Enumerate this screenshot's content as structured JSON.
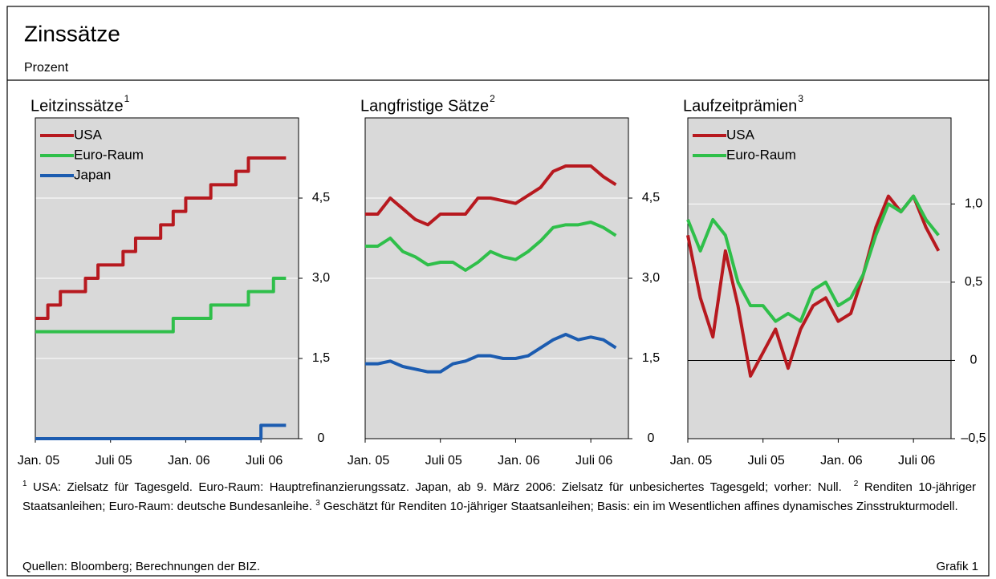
{
  "header": {
    "title": "Zinssätze",
    "subtitle": "Prozent"
  },
  "chart_data": [
    {
      "type": "line",
      "step": true,
      "title": "Leitzinssätze",
      "title_footnote": "1",
      "x": [
        "2005-01",
        "2005-02",
        "2005-03",
        "2005-04",
        "2005-05",
        "2005-06",
        "2005-07",
        "2005-08",
        "2005-09",
        "2005-10",
        "2005-11",
        "2005-12",
        "2006-01",
        "2006-02",
        "2006-03",
        "2006-04",
        "2006-05",
        "2006-06",
        "2006-07",
        "2006-08",
        "2006-09"
      ],
      "xlim": [
        "2005-01",
        "2006-10"
      ],
      "xticks": [
        {
          "value": "2005-01",
          "label": "Jan. 05"
        },
        {
          "value": "2005-07",
          "label": "Juli 05"
        },
        {
          "value": "2006-01",
          "label": "Jan. 06"
        },
        {
          "value": "2006-07",
          "label": "Juli 06"
        }
      ],
      "ylim": [
        0,
        6
      ],
      "yticks": [
        0,
        {
          "value": 1.5,
          "label": "1,5"
        },
        {
          "value": 3,
          "label": "3,0"
        },
        {
          "value": 4.5,
          "label": "4,5"
        }
      ],
      "grid": true,
      "legend": "top-left",
      "series": [
        {
          "name": "USA",
          "color": "#b7191f",
          "values": [
            2.25,
            2.5,
            2.75,
            2.75,
            3.0,
            3.25,
            3.25,
            3.5,
            3.75,
            3.75,
            4.0,
            4.25,
            4.5,
            4.5,
            4.75,
            4.75,
            5.0,
            5.25,
            5.25,
            5.25,
            5.25
          ]
        },
        {
          "name": "Euro-Raum",
          "color": "#2fbf4a",
          "values": [
            2.0,
            2.0,
            2.0,
            2.0,
            2.0,
            2.0,
            2.0,
            2.0,
            2.0,
            2.0,
            2.0,
            2.25,
            2.25,
            2.25,
            2.5,
            2.5,
            2.5,
            2.75,
            2.75,
            3.0,
            3.0
          ]
        },
        {
          "name": "Japan",
          "color": "#1c5cb0",
          "values": [
            0,
            0,
            0,
            0,
            0,
            0,
            0,
            0,
            0,
            0,
            0,
            0,
            0,
            0,
            0,
            0,
            0,
            0,
            0.25,
            0.25,
            0.25
          ]
        }
      ]
    },
    {
      "type": "line",
      "title": "Langfristige Sätze",
      "title_footnote": "2",
      "x": [
        "2005-01",
        "2005-02",
        "2005-03",
        "2005-04",
        "2005-05",
        "2005-06",
        "2005-07",
        "2005-08",
        "2005-09",
        "2005-10",
        "2005-11",
        "2005-12",
        "2006-01",
        "2006-02",
        "2006-03",
        "2006-04",
        "2006-05",
        "2006-06",
        "2006-07",
        "2006-08",
        "2006-09"
      ],
      "xlim": [
        "2005-01",
        "2006-10"
      ],
      "xticks": [
        {
          "value": "2005-01",
          "label": "Jan. 05"
        },
        {
          "value": "2005-07",
          "label": "Juli 05"
        },
        {
          "value": "2006-01",
          "label": "Jan. 06"
        },
        {
          "value": "2006-07",
          "label": "Juli 06"
        }
      ],
      "ylim": [
        0,
        6
      ],
      "yticks": [
        0,
        {
          "value": 1.5,
          "label": "1,5"
        },
        {
          "value": 3,
          "label": "3,0"
        },
        {
          "value": 4.5,
          "label": "4,5"
        }
      ],
      "grid": true,
      "series": [
        {
          "name": "USA",
          "color": "#b7191f",
          "values": [
            4.2,
            4.2,
            4.5,
            4.3,
            4.1,
            4.0,
            4.2,
            4.2,
            4.2,
            4.5,
            4.5,
            4.45,
            4.4,
            4.55,
            4.7,
            5.0,
            5.1,
            5.1,
            5.1,
            4.9,
            4.75
          ]
        },
        {
          "name": "Euro-Raum",
          "color": "#2fbf4a",
          "values": [
            3.6,
            3.6,
            3.75,
            3.5,
            3.4,
            3.25,
            3.3,
            3.3,
            3.15,
            3.3,
            3.5,
            3.4,
            3.35,
            3.5,
            3.7,
            3.95,
            4.0,
            4.0,
            4.05,
            3.95,
            3.8
          ]
        },
        {
          "name": "Japan",
          "color": "#1c5cb0",
          "values": [
            1.4,
            1.4,
            1.45,
            1.35,
            1.3,
            1.25,
            1.25,
            1.4,
            1.45,
            1.55,
            1.55,
            1.5,
            1.5,
            1.55,
            1.7,
            1.85,
            1.95,
            1.85,
            1.9,
            1.85,
            1.7
          ]
        }
      ]
    },
    {
      "type": "line",
      "title": "Laufzeitprämien",
      "title_footnote": "3",
      "x": [
        "2005-01",
        "2005-02",
        "2005-03",
        "2005-04",
        "2005-05",
        "2005-06",
        "2005-07",
        "2005-08",
        "2005-09",
        "2005-10",
        "2005-11",
        "2005-12",
        "2006-01",
        "2006-02",
        "2006-03",
        "2006-04",
        "2006-05",
        "2006-06",
        "2006-07",
        "2006-08",
        "2006-09"
      ],
      "xlim": [
        "2005-01",
        "2006-10"
      ],
      "xticks": [
        {
          "value": "2005-01",
          "label": "Jan. 05"
        },
        {
          "value": "2005-07",
          "label": "Juli 05"
        },
        {
          "value": "2006-01",
          "label": "Jan. 06"
        },
        {
          "value": "2006-07",
          "label": "Juli 06"
        }
      ],
      "ylim": [
        -0.5,
        1.55
      ],
      "yticks": [
        {
          "value": -0.5,
          "label": "–0,5"
        },
        0,
        {
          "value": 0.5,
          "label": "0,5"
        },
        {
          "value": 1,
          "label": "1,0"
        }
      ],
      "grid": true,
      "zero_line": true,
      "legend": "top-left",
      "series": [
        {
          "name": "USA",
          "color": "#b7191f",
          "values": [
            0.8,
            0.4,
            0.15,
            0.7,
            0.35,
            -0.1,
            0.05,
            0.2,
            -0.05,
            0.2,
            0.35,
            0.4,
            0.25,
            0.3,
            0.55,
            0.85,
            1.05,
            0.95,
            1.05,
            0.85,
            0.7
          ]
        },
        {
          "name": "Euro-Raum",
          "color": "#2fbf4a",
          "values": [
            0.9,
            0.7,
            0.9,
            0.8,
            0.5,
            0.35,
            0.35,
            0.25,
            0.3,
            0.25,
            0.45,
            0.5,
            0.35,
            0.4,
            0.55,
            0.8,
            1.0,
            0.95,
            1.05,
            0.9,
            0.8
          ]
        }
      ]
    }
  ],
  "footnotes": [
    {
      "marker": "1",
      "text": "USA: Zielsatz für Tagesgeld. Euro-Raum: Hauptrefinanzierungssatz. Japan, ab 9. März 2006: Zielsatz für unbesichertes Tagesgeld; vorher: Null."
    },
    {
      "marker": "2",
      "text": "Renditen 10-jähriger Staatsanleihen; Euro-Raum: deutsche Bundesanleihe."
    },
    {
      "marker": "3",
      "text": "Geschätzt für Renditen 10-jähriger Staatsanleihen; Basis: ein im Wesentlichen affines dynamisches Zinsstrukturmodell."
    }
  ],
  "source": "Quellen: Bloomberg; Berechnungen der BIZ.",
  "figure_label": "Grafik 1"
}
